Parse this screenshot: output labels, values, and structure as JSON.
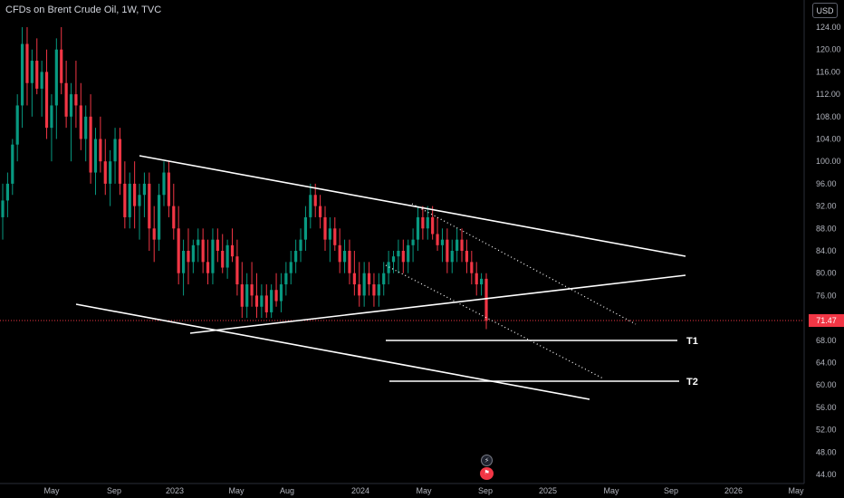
{
  "header": {
    "title": "CFDs on Brent Crude Oil, 1W, TVC",
    "currency": "USD"
  },
  "last_price_label": "71.47",
  "controls": {
    "bolt_icon": "lightning-icon",
    "flag_icon": "event-flag-icon"
  },
  "colors": {
    "up": "#089981",
    "down": "#f23645",
    "background": "#000000",
    "drawing": "#ffffff"
  },
  "chart_data": {
    "type": "candlestick",
    "title": "CFDs on Brent Crude Oil, 1W, TVC",
    "interval": "1W",
    "y_axis": {
      "ticks": [
        "124.00",
        "120.00",
        "116.00",
        "112.00",
        "108.00",
        "104.00",
        "100.00",
        "96.00",
        "92.00",
        "88.00",
        "84.00",
        "80.00",
        "76.00",
        "72.00",
        "68.00",
        "64.00",
        "60.00",
        "56.00",
        "52.00",
        "48.00",
        "44.00"
      ],
      "range": [
        44,
        124
      ]
    },
    "x_axis": {
      "ticks": [
        "May",
        "Sep",
        "2023",
        "May",
        "Aug",
        "2024",
        "May",
        "Sep",
        "2025",
        "May",
        "Sep",
        "2026",
        "May"
      ]
    },
    "last_price": 71.47,
    "trendlines": [
      {
        "name": "upper-resistance",
        "style": "solid",
        "from": [
          100.8,
          "2022-Nov"
        ],
        "to": [
          83.0,
          "2025-Sep"
        ]
      },
      {
        "name": "rising-support",
        "style": "solid",
        "from": [
          70.2,
          "2023-Feb"
        ],
        "to": [
          79.5,
          "2025-Sep"
        ]
      },
      {
        "name": "lower-support",
        "style": "solid",
        "from": [
          75.7,
          "2022-Jun"
        ],
        "to": [
          57.4,
          "2025-Jun"
        ]
      },
      {
        "name": "channel-top",
        "style": "dotted",
        "from": [
          92.5,
          "2024-Apr"
        ],
        "to": [
          71.8,
          "2025-Jul"
        ]
      },
      {
        "name": "channel-bottom",
        "style": "dotted",
        "from": [
          83.4,
          "2024-Mar"
        ],
        "to": [
          60.8,
          "2025-May"
        ]
      }
    ],
    "targets": [
      {
        "label": "T1",
        "value": 68.0
      },
      {
        "label": "T2",
        "value": 60.6
      }
    ],
    "candles_ohlc": [
      [
        90,
        96,
        86,
        93
      ],
      [
        93,
        98,
        90,
        96
      ],
      [
        96,
        104,
        94,
        103
      ],
      [
        103,
        112,
        100,
        110
      ],
      [
        110,
        124,
        106,
        121
      ],
      [
        121,
        124,
        110,
        114
      ],
      [
        114,
        120,
        108,
        118
      ],
      [
        118,
        122,
        112,
        113
      ],
      [
        113,
        118,
        108,
        116
      ],
      [
        116,
        120,
        104,
        106
      ],
      [
        106,
        112,
        100,
        110
      ],
      [
        110,
        122,
        104,
        120
      ],
      [
        120,
        124,
        112,
        114
      ],
      [
        114,
        118,
        106,
        108
      ],
      [
        108,
        114,
        100,
        112
      ],
      [
        112,
        118,
        106,
        110
      ],
      [
        110,
        114,
        102,
        104
      ],
      [
        104,
        110,
        100,
        108
      ],
      [
        108,
        112,
        96,
        98
      ],
      [
        98,
        106,
        94,
        104
      ],
      [
        104,
        108,
        98,
        100
      ],
      [
        100,
        104,
        94,
        96
      ],
      [
        96,
        102,
        92,
        100
      ],
      [
        100,
        106,
        96,
        104
      ],
      [
        104,
        106,
        94,
        96
      ],
      [
        96,
        100,
        88,
        90
      ],
      [
        90,
        98,
        88,
        96
      ],
      [
        96,
        100,
        88,
        92
      ],
      [
        92,
        96,
        86,
        94
      ],
      [
        94,
        98,
        90,
        96
      ],
      [
        96,
        98,
        84,
        88
      ],
      [
        88,
        92,
        82,
        86
      ],
      [
        86,
        96,
        84,
        94
      ],
      [
        94,
        100,
        92,
        98
      ],
      [
        98,
        100,
        90,
        92
      ],
      [
        92,
        96,
        86,
        88
      ],
      [
        88,
        92,
        78,
        80
      ],
      [
        80,
        86,
        76,
        84
      ],
      [
        84,
        88,
        78,
        82
      ],
      [
        82,
        86,
        80,
        85
      ],
      [
        85,
        88,
        82,
        86
      ],
      [
        86,
        88,
        80,
        82
      ],
      [
        82,
        86,
        78,
        80
      ],
      [
        80,
        88,
        78,
        86
      ],
      [
        86,
        88,
        82,
        84
      ],
      [
        84,
        87,
        80,
        81
      ],
      [
        81,
        86,
        79,
        85
      ],
      [
        85,
        88,
        82,
        83
      ],
      [
        83,
        86,
        76,
        78
      ],
      [
        78,
        82,
        72,
        74
      ],
      [
        74,
        80,
        72,
        78
      ],
      [
        78,
        82,
        74,
        76
      ],
      [
        76,
        80,
        72,
        74
      ],
      [
        74,
        78,
        72,
        76
      ],
      [
        76,
        78,
        72,
        73
      ],
      [
        73,
        78,
        72,
        77
      ],
      [
        77,
        80,
        74,
        75
      ],
      [
        75,
        80,
        73,
        78
      ],
      [
        78,
        82,
        76,
        80
      ],
      [
        80,
        84,
        78,
        82
      ],
      [
        82,
        86,
        80,
        84
      ],
      [
        84,
        88,
        82,
        86
      ],
      [
        86,
        92,
        84,
        90
      ],
      [
        90,
        96,
        88,
        94
      ],
      [
        94,
        96,
        90,
        92
      ],
      [
        92,
        94,
        88,
        90
      ],
      [
        90,
        92,
        84,
        86
      ],
      [
        86,
        90,
        82,
        88
      ],
      [
        88,
        90,
        84,
        85
      ],
      [
        85,
        88,
        80,
        82
      ],
      [
        82,
        86,
        80,
        84
      ],
      [
        84,
        86,
        78,
        80
      ],
      [
        80,
        84,
        76,
        78
      ],
      [
        78,
        82,
        74,
        76
      ],
      [
        76,
        82,
        74,
        80
      ],
      [
        80,
        82,
        76,
        78
      ],
      [
        78,
        80,
        74,
        76
      ],
      [
        76,
        80,
        74,
        78
      ],
      [
        78,
        82,
        76,
        80
      ],
      [
        80,
        84,
        78,
        82
      ],
      [
        82,
        84,
        80,
        83
      ],
      [
        83,
        86,
        80,
        84
      ],
      [
        84,
        86,
        80,
        82
      ],
      [
        82,
        86,
        80,
        85
      ],
      [
        85,
        88,
        82,
        86
      ],
      [
        86,
        92,
        84,
        90
      ],
      [
        90,
        92,
        86,
        88
      ],
      [
        88,
        92,
        86,
        90
      ],
      [
        90,
        92,
        86,
        87
      ],
      [
        87,
        90,
        84,
        85
      ],
      [
        85,
        88,
        82,
        86
      ],
      [
        86,
        88,
        80,
        82
      ],
      [
        82,
        86,
        80,
        84
      ],
      [
        84,
        88,
        82,
        86
      ],
      [
        86,
        88,
        82,
        84
      ],
      [
        84,
        86,
        80,
        82
      ],
      [
        82,
        84,
        78,
        80
      ],
      [
        80,
        82,
        76,
        78
      ],
      [
        78,
        80,
        76,
        79
      ],
      [
        79,
        80,
        70,
        71.47
      ]
    ]
  }
}
